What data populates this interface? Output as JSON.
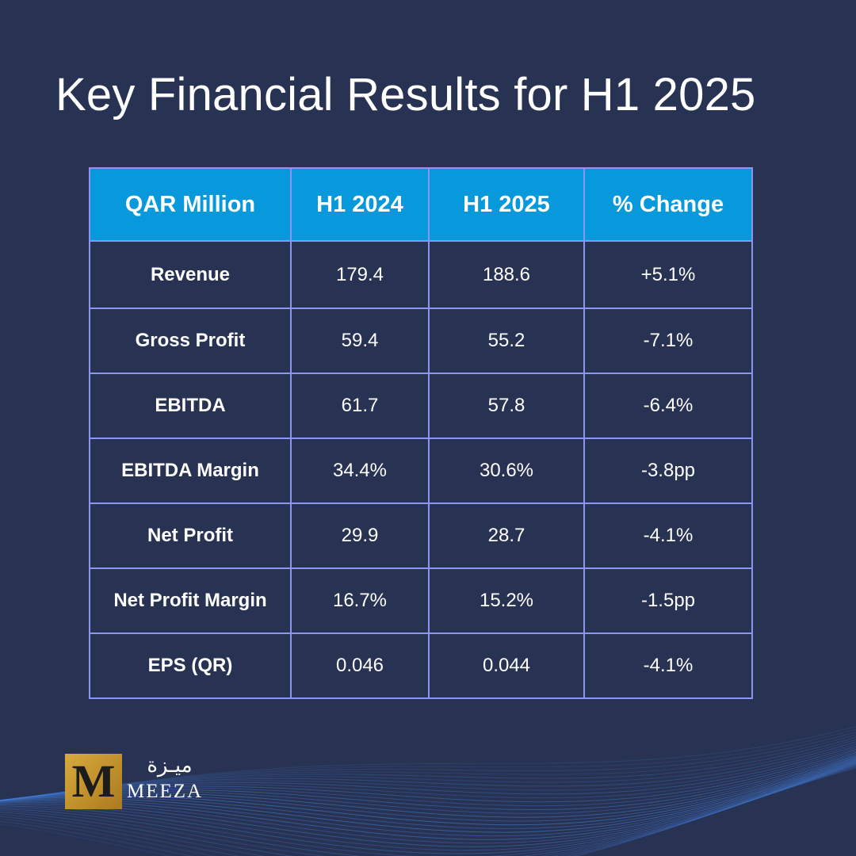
{
  "title": "Key Financial Results for H1 2025",
  "table": {
    "headers": [
      "QAR Million",
      "H1 2024",
      "H1 2025",
      "% Change"
    ],
    "rows": [
      [
        "Revenue",
        "179.4",
        "188.6",
        "+5.1%"
      ],
      [
        "Gross Profit",
        "59.4",
        "55.2",
        "-7.1%"
      ],
      [
        "EBITDA",
        "61.7",
        "57.8",
        "-6.4%"
      ],
      [
        "EBITDA Margin",
        "34.4%",
        "30.6%",
        "-3.8pp"
      ],
      [
        "Net Profit",
        "29.9",
        "28.7",
        "-4.1%"
      ],
      [
        "Net Profit Margin",
        "16.7%",
        "15.2%",
        "-1.5pp"
      ],
      [
        "EPS (QR)",
        "0.046",
        "0.044",
        "-4.1%"
      ]
    ]
  },
  "brand": {
    "logo_letter": "M",
    "name_arabic": "ميـزة",
    "name_latin": "MEEZA"
  },
  "colors": {
    "background": "#283252",
    "header_fill": "#0899dc",
    "table_border": "#8a96f0",
    "logo_gold": "#c0902b"
  },
  "icons": [
    "meeza-logo",
    "decorative-wave-lines"
  ]
}
